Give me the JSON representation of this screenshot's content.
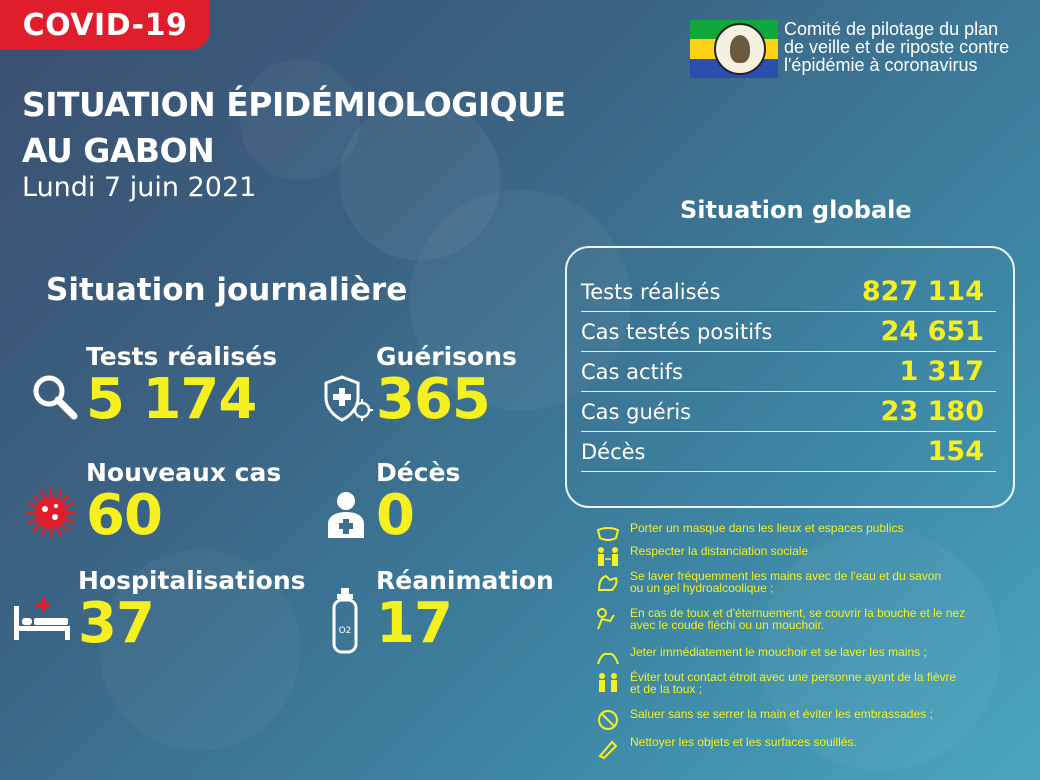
{
  "banner": {
    "tag": "COVID-19"
  },
  "header": {
    "title_line1": "SITUATION ÉPIDÉMIOLOGIQUE",
    "title_line2": "AU GABON",
    "date": "Lundi 7 juin 2021"
  },
  "committee": {
    "line1": "Comité de pilotage du plan",
    "line2": "de veille et de riposte contre",
    "line3": "l'épidémie à coronavirus"
  },
  "daily": {
    "heading": "Situation journalière",
    "tests": {
      "label": "Tests réalisés",
      "value": "5 174"
    },
    "recoveries": {
      "label": "Guérisons",
      "value": "365"
    },
    "new_cases": {
      "label": "Nouveaux cas",
      "value": "60"
    },
    "deaths": {
      "label": "Décès",
      "value": "0"
    },
    "hospitalisations": {
      "label": "Hospitalisations",
      "value": "37"
    },
    "icu": {
      "label": "Réanimation",
      "value": "17"
    }
  },
  "global": {
    "heading": "Situation globale",
    "rows": [
      {
        "label": "Tests réalisés",
        "value": "827 114"
      },
      {
        "label": "Cas testés positifs",
        "value": "24 651"
      },
      {
        "label": "Cas actifs",
        "value": "1 317"
      },
      {
        "label": "Cas guéris",
        "value": "23 180"
      },
      {
        "label": "Décès",
        "value": "154"
      }
    ]
  },
  "advice": [
    {
      "icon": "mask-icon",
      "text": "Porter un masque dans les lieux et espaces publics"
    },
    {
      "icon": "distancing-icon",
      "text": "Respecter la distanciation sociale"
    },
    {
      "icon": "handwash-icon",
      "text": "Se laver fréquemment les mains avec de l'eau et du savon\n ou un gel hydroalcoolique ;"
    },
    {
      "icon": "cough-elbow-icon",
      "text": "En cas de toux et d'éternuement, se couvrir la bouche et le nez\n avec le coude fléchi ou un mouchoir."
    },
    {
      "icon": "tissue-icon",
      "text": "Jeter immédiatement le mouchoir et se laver les mains ;"
    },
    {
      "icon": "avoid-contact-icon",
      "text": "Éviter tout contact étroit avec une personne ayant de la fièvre\n et de la toux ;"
    },
    {
      "icon": "no-handshake-icon",
      "text": "Saluer sans se serrer la main et éviter les embrassades ;"
    },
    {
      "icon": "cleaning-icon",
      "text": "Nettoyer les objets et les surfaces souillés."
    }
  ],
  "colors": {
    "accent": "#f5f01e",
    "tag": "#e01e2b"
  }
}
